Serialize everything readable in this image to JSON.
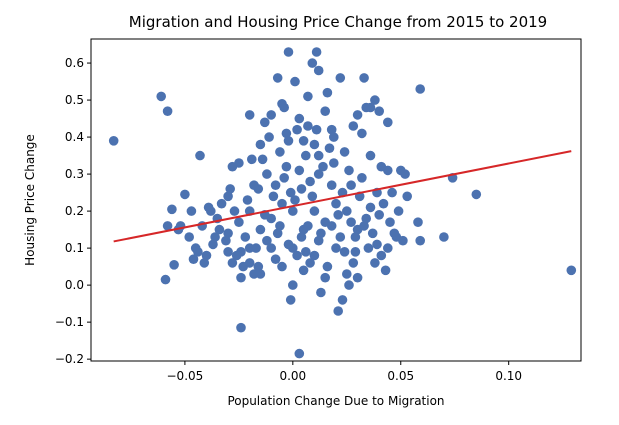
{
  "chart_data": {
    "type": "scatter",
    "title": "Migration and Housing Price Change from 2015 to 2019",
    "xlabel": "Population Change Due to Migration",
    "ylabel": "Housing Price Change",
    "xlim": [
      -0.0935,
      0.1335
    ],
    "ylim": [
      -0.205,
      0.665
    ],
    "x_ticks": [
      -0.05,
      0.0,
      0.05,
      0.1
    ],
    "x_tick_labels": [
      "−0.05",
      "0.00",
      "0.05",
      "0.10"
    ],
    "y_ticks": [
      -0.2,
      -0.1,
      0.0,
      0.1,
      0.2,
      0.3,
      0.4,
      0.5,
      0.6
    ],
    "y_tick_labels": [
      "−0.2",
      "−0.1",
      "0.0",
      "0.1",
      "0.2",
      "0.3",
      "0.4",
      "0.5",
      "0.6"
    ],
    "grid": false,
    "marker_color": "#4c72b0",
    "line_color": "#d62728",
    "regression_line": {
      "x": [
        -0.083,
        0.129
      ],
      "y": [
        0.118,
        0.362
      ]
    },
    "points": [
      [
        -0.083,
        0.39
      ],
      [
        -0.061,
        0.51
      ],
      [
        -0.058,
        0.47
      ],
      [
        -0.058,
        0.16
      ],
      [
        -0.056,
        0.205
      ],
      [
        -0.053,
        0.15
      ],
      [
        -0.05,
        0.245
      ],
      [
        -0.055,
        0.055
      ],
      [
        -0.059,
        0.015
      ],
      [
        -0.043,
        0.35
      ],
      [
        -0.042,
        0.16
      ],
      [
        -0.038,
        0.2
      ],
      [
        -0.033,
        0.22
      ],
      [
        -0.04,
        0.08
      ],
      [
        -0.036,
        0.13
      ],
      [
        -0.03,
        0.09
      ],
      [
        -0.03,
        0.24
      ],
      [
        -0.028,
        0.32
      ],
      [
        -0.025,
        0.33
      ],
      [
        -0.02,
        0.46
      ],
      [
        -0.024,
        -0.115
      ],
      [
        -0.024,
        0.02
      ],
      [
        -0.02,
        0.06
      ],
      [
        -0.018,
        0.03
      ],
      [
        -0.016,
        0.26
      ],
      [
        -0.015,
        0.38
      ],
      [
        -0.013,
        0.44
      ],
      [
        -0.01,
        0.46
      ],
      [
        -0.007,
        0.56
      ],
      [
        -0.005,
        0.49
      ],
      [
        -0.004,
        0.48
      ],
      [
        -0.003,
        0.41
      ],
      [
        -0.002,
        0.63
      ],
      [
        0.001,
        0.55
      ],
      [
        0.003,
        0.45
      ],
      [
        0.005,
        0.39
      ],
      [
        0.007,
        0.51
      ],
      [
        0.009,
        0.6
      ],
      [
        0.011,
        0.63
      ],
      [
        0.012,
        0.58
      ],
      [
        0.015,
        0.47
      ],
      [
        0.016,
        0.52
      ],
      [
        0.018,
        0.42
      ],
      [
        0.019,
        0.4
      ],
      [
        0.012,
        0.35
      ],
      [
        0.022,
        0.56
      ],
      [
        0.026,
        0.31
      ],
      [
        0.028,
        0.43
      ],
      [
        0.03,
        0.46
      ],
      [
        0.032,
        0.41
      ],
      [
        0.034,
        0.48
      ],
      [
        0.036,
        0.48
      ],
      [
        0.038,
        0.5
      ],
      [
        0.04,
        0.47
      ],
      [
        0.044,
        0.44
      ],
      [
        0.033,
        0.56
      ],
      [
        0.059,
        0.53
      ],
      [
        0.044,
        0.31
      ],
      [
        0.05,
        0.31
      ],
      [
        0.052,
        0.3
      ],
      [
        0.041,
        0.32
      ],
      [
        0.046,
        0.25
      ],
      [
        0.053,
        0.24
      ],
      [
        0.058,
        0.17
      ],
      [
        0.051,
        0.12
      ],
      [
        0.059,
        0.12
      ],
      [
        0.07,
        0.13
      ],
      [
        0.074,
        0.29
      ],
      [
        0.085,
        0.245
      ],
      [
        0.129,
        0.04
      ],
      [
        0.003,
        -0.185
      ],
      [
        -0.001,
        -0.04
      ],
      [
        0.013,
        -0.02
      ],
      [
        0.021,
        -0.07
      ],
      [
        0.023,
        -0.04
      ],
      [
        0.026,
        0.0
      ],
      [
        0.03,
        0.02
      ],
      [
        0.038,
        0.06
      ],
      [
        0.041,
        0.08
      ],
      [
        0.044,
        0.1
      ],
      [
        0.047,
        0.14
      ],
      [
        0.04,
        0.19
      ],
      [
        0.036,
        0.21
      ],
      [
        0.033,
        0.16
      ],
      [
        0.029,
        0.13
      ],
      [
        -0.045,
        0.1
      ],
      [
        -0.041,
        0.06
      ],
      [
        -0.048,
        0.13
      ],
      [
        -0.052,
        0.16
      ],
      [
        -0.02,
        0.2
      ],
      [
        -0.01,
        0.18
      ],
      [
        0.0,
        0.2
      ],
      [
        0.01,
        0.2
      ],
      [
        0.005,
        0.15
      ],
      [
        -0.005,
        0.22
      ],
      [
        -0.015,
        0.15
      ],
      [
        0.015,
        0.17
      ],
      [
        0.02,
        0.22
      ],
      [
        -0.025,
        0.17
      ],
      [
        0.025,
        0.2
      ],
      [
        -0.008,
        0.27
      ],
      [
        0.008,
        0.28
      ],
      [
        -0.003,
        0.32
      ],
      [
        0.003,
        0.31
      ],
      [
        -0.012,
        0.3
      ],
      [
        0.012,
        0.3
      ],
      [
        0.018,
        0.27
      ],
      [
        -0.018,
        0.27
      ],
      [
        0.006,
        0.35
      ],
      [
        -0.006,
        0.36
      ],
      [
        -0.01,
        0.1
      ],
      [
        0.0,
        0.1
      ],
      [
        0.01,
        0.08
      ],
      [
        -0.02,
        0.1
      ],
      [
        0.02,
        0.1
      ],
      [
        -0.005,
        0.05
      ],
      [
        0.005,
        0.04
      ],
      [
        -0.015,
        0.03
      ],
      [
        0.015,
        0.02
      ],
      [
        0.0,
        0.0
      ],
      [
        -0.03,
        0.14
      ],
      [
        0.03,
        0.15
      ],
      [
        -0.035,
        0.18
      ],
      [
        0.035,
        0.1
      ],
      [
        -0.028,
        0.06
      ],
      [
        0.028,
        0.06
      ],
      [
        -0.012,
        0.12
      ],
      [
        0.012,
        0.12
      ],
      [
        -0.007,
        0.14
      ],
      [
        0.007,
        0.16
      ],
      [
        0.001,
        0.23
      ],
      [
        -0.001,
        0.25
      ],
      [
        0.004,
        0.26
      ],
      [
        -0.004,
        0.29
      ],
      [
        0.009,
        0.24
      ],
      [
        -0.009,
        0.24
      ],
      [
        0.014,
        0.32
      ],
      [
        -0.014,
        0.34
      ],
      [
        0.017,
        0.37
      ],
      [
        -0.017,
        0.1
      ],
      [
        0.022,
        0.13
      ],
      [
        -0.022,
        0.13
      ],
      [
        0.024,
        0.09
      ],
      [
        -0.024,
        0.09
      ],
      [
        0.027,
        0.17
      ],
      [
        -0.027,
        0.2
      ],
      [
        0.031,
        0.24
      ],
      [
        -0.031,
        0.12
      ],
      [
        0.037,
        0.14
      ],
      [
        -0.037,
        0.11
      ],
      [
        0.039,
        0.25
      ],
      [
        -0.039,
        0.21
      ],
      [
        0.042,
        0.22
      ],
      [
        -0.044,
        0.09
      ],
      [
        0.048,
        0.13
      ],
      [
        -0.046,
        0.07
      ],
      [
        0.002,
        0.42
      ],
      [
        -0.002,
        0.39
      ],
      [
        0.011,
        0.42
      ],
      [
        0.019,
        0.33
      ],
      [
        0.024,
        0.36
      ],
      [
        0.027,
        0.27
      ],
      [
        0.032,
        0.29
      ],
      [
        -0.016,
        0.05
      ],
      [
        0.016,
        0.05
      ],
      [
        -0.008,
        0.07
      ],
      [
        0.008,
        0.06
      ],
      [
        0.002,
        0.08
      ],
      [
        -0.002,
        0.11
      ],
      [
        0.004,
        0.13
      ],
      [
        0.006,
        0.09
      ],
      [
        -0.006,
        0.16
      ],
      [
        0.013,
        0.14
      ],
      [
        -0.013,
        0.19
      ],
      [
        0.018,
        0.16
      ],
      [
        0.021,
        0.19
      ],
      [
        -0.021,
        0.23
      ],
      [
        0.023,
        0.25
      ],
      [
        -0.023,
        0.05
      ],
      [
        0.025,
        0.03
      ],
      [
        -0.026,
        0.08
      ],
      [
        0.029,
        0.09
      ],
      [
        -0.029,
        0.26
      ],
      [
        0.034,
        0.18
      ],
      [
        -0.034,
        0.15
      ],
      [
        0.036,
        0.35
      ],
      [
        -0.019,
        0.34
      ],
      [
        0.01,
        0.38
      ],
      [
        -0.011,
        0.4
      ],
      [
        0.007,
        0.43
      ],
      [
        0.045,
        0.17
      ],
      [
        0.049,
        0.2
      ],
      [
        -0.047,
        0.2
      ],
      [
        0.043,
        0.04
      ],
      [
        0.039,
        0.11
      ]
    ]
  }
}
